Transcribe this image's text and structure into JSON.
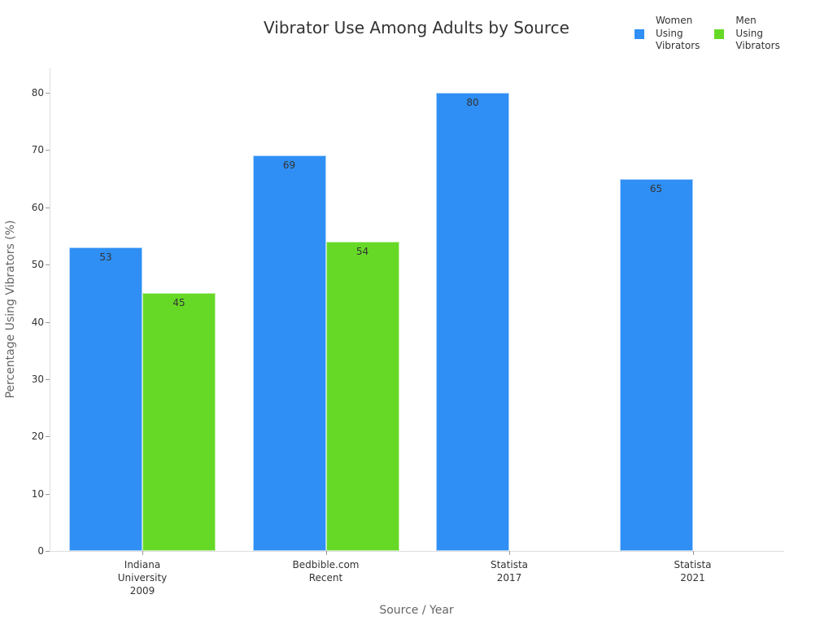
{
  "chart_data": {
    "type": "bar",
    "title": "Vibrator Use Among Adults by Source",
    "xlabel": "Source / Year",
    "ylabel": "Percentage Using Vibrators (%)",
    "categories": [
      "Indiana\nUniversity\n2009",
      "Bedbible.com\nRecent",
      "Statista\n2017",
      "Statista\n2021"
    ],
    "series": [
      {
        "name": "Women Using Vibrators",
        "color": "#2f8ff5",
        "values": [
          53,
          69,
          80,
          65
        ]
      },
      {
        "name": "Men Using Vibrators",
        "color": "#66d927",
        "values": [
          45,
          54,
          null,
          null
        ]
      }
    ],
    "ylim": [
      0,
      84
    ],
    "yticks": [
      0,
      10,
      20,
      30,
      40,
      50,
      60,
      70,
      80
    ],
    "grid": false,
    "legend_position": "top-right"
  },
  "legend": [
    {
      "label_lines": [
        "Women",
        "Using",
        "Vibrators"
      ],
      "color": "#2f8ff5"
    },
    {
      "label_lines": [
        "Men",
        "Using",
        "Vibrators"
      ],
      "color": "#66d927"
    }
  ]
}
